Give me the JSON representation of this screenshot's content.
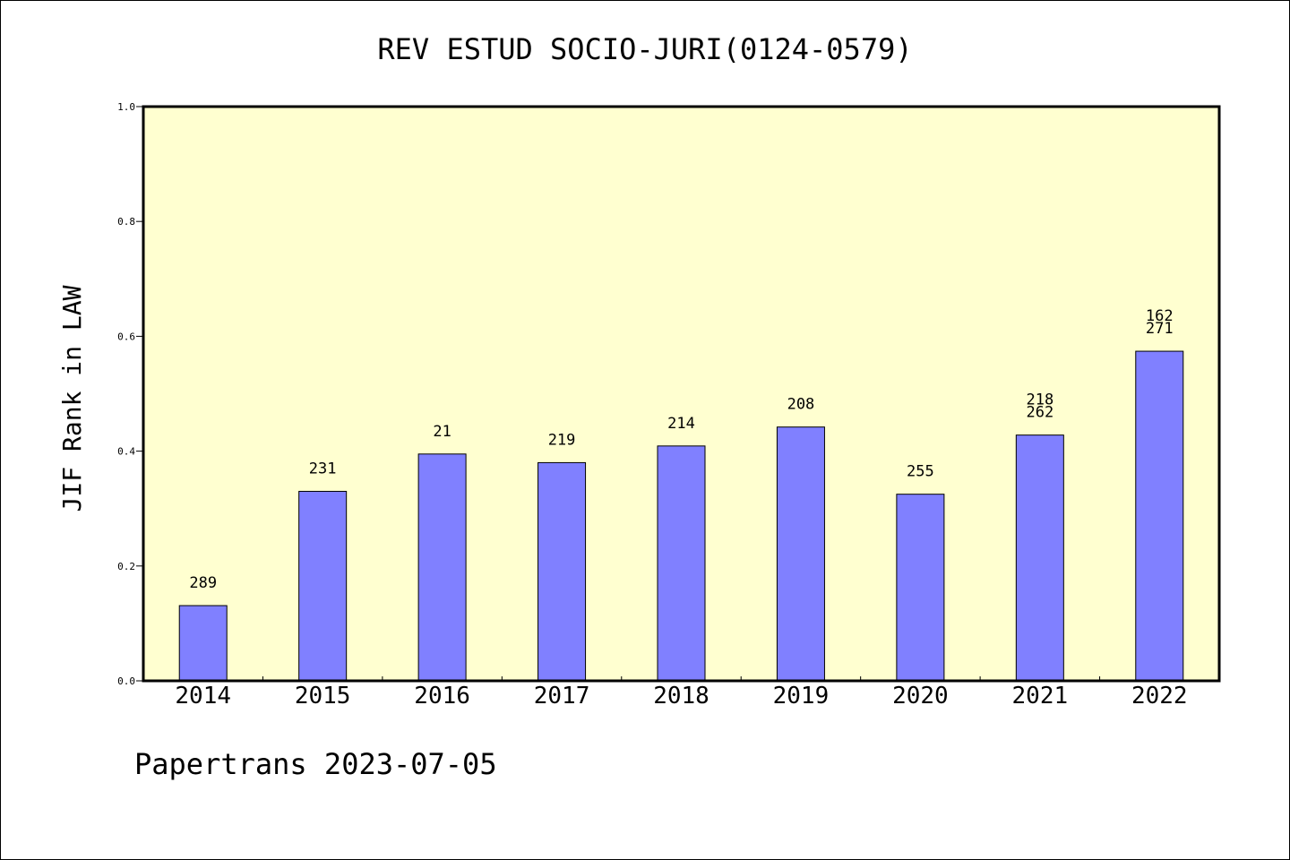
{
  "chart_data": {
    "type": "bar",
    "title": "REV ESTUD SOCIO-JURI(0124-0579)",
    "ylabel": "JIF Rank in LAW",
    "xlabel": "",
    "ylim": [
      0,
      1.0
    ],
    "yticks": [
      "0.0",
      "0.2",
      "0.4",
      "0.6",
      "0.8",
      "1.0"
    ],
    "categories": [
      "2014",
      "2015",
      "2016",
      "2017",
      "2018",
      "2019",
      "2020",
      "2021",
      "2022"
    ],
    "values": [
      0.131,
      0.33,
      0.395,
      0.38,
      0.409,
      0.442,
      0.325,
      0.428,
      0.574
    ],
    "bar_labels": [
      [
        "289"
      ],
      [
        "231"
      ],
      [
        "21"
      ],
      [
        "219"
      ],
      [
        "214"
      ],
      [
        "208"
      ],
      [
        "255"
      ],
      [
        "218",
        "262"
      ],
      [
        "162",
        "271"
      ]
    ],
    "plot_background": "#ffffd0",
    "bar_color": "#8080ff",
    "grid": false
  },
  "footer": "Papertrans 2023-07-05"
}
